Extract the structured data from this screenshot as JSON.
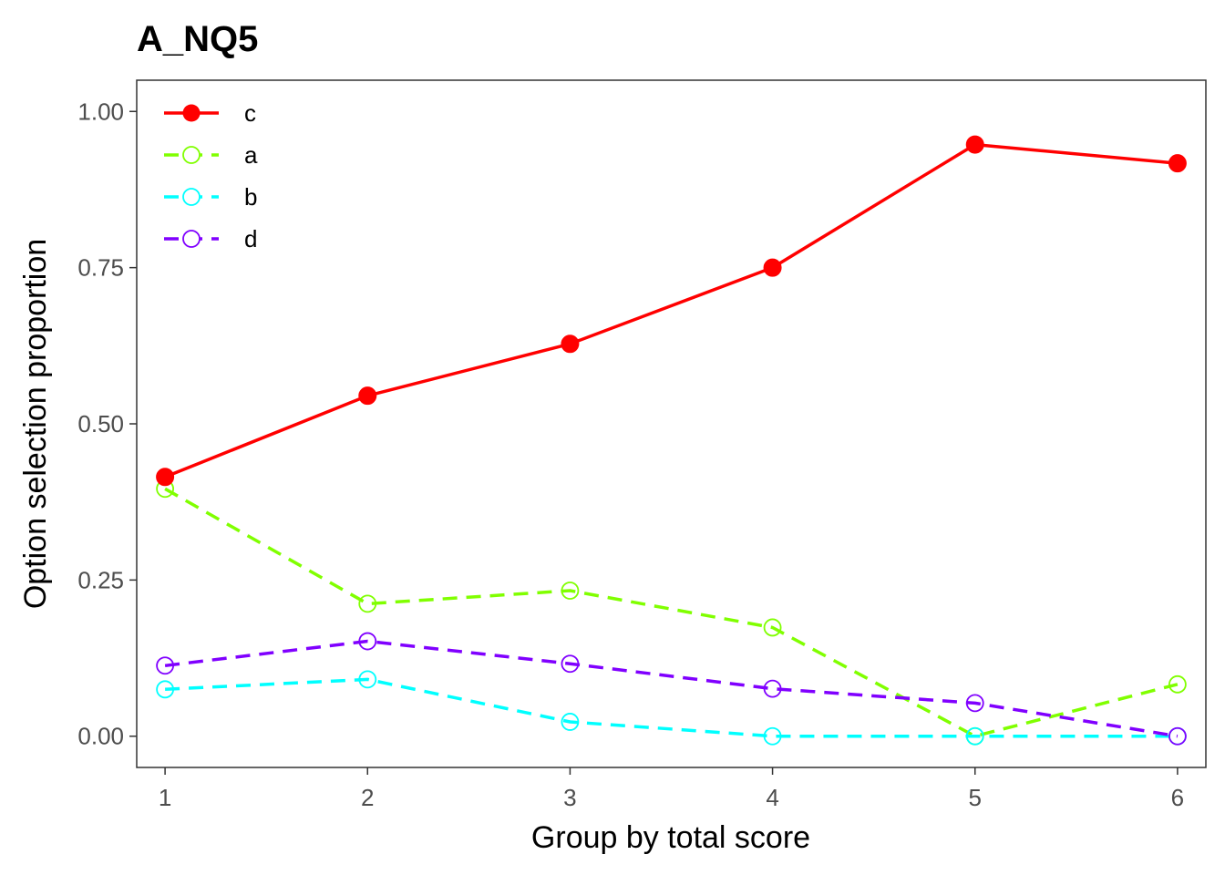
{
  "chart_data": {
    "type": "line",
    "title": "A_NQ5",
    "xlabel": "Group by total score",
    "ylabel": "Option selection proportion",
    "x": [
      1,
      2,
      3,
      4,
      5,
      6
    ],
    "x_ticks": [
      "1",
      "2",
      "3",
      "4",
      "5",
      "6"
    ],
    "y_ticks": [
      "0.00",
      "0.25",
      "0.50",
      "0.75",
      "1.00"
    ],
    "xlim": [
      0.86,
      6.14
    ],
    "ylim": [
      -0.05,
      1.05
    ],
    "grid": false,
    "legend_position": "top-left",
    "series": [
      {
        "name": "c",
        "values": [
          0.415,
          0.545,
          0.628,
          0.75,
          0.947,
          0.917
        ],
        "color": "#ff0000",
        "line_style": "solid",
        "marker": "filled-circle"
      },
      {
        "name": "a",
        "values": [
          0.396,
          0.212,
          0.233,
          0.174,
          0.0,
          0.083
        ],
        "color": "#80ff00",
        "line_style": "dashed",
        "marker": "open-circle"
      },
      {
        "name": "b",
        "values": [
          0.075,
          0.091,
          0.023,
          0.0,
          0.0,
          0.0
        ],
        "color": "#00ffff",
        "line_style": "dashed",
        "marker": "open-circle"
      },
      {
        "name": "d",
        "values": [
          0.113,
          0.152,
          0.116,
          0.076,
          0.053,
          0.0
        ],
        "color": "#8000ff",
        "line_style": "dashed",
        "marker": "open-circle"
      }
    ]
  }
}
